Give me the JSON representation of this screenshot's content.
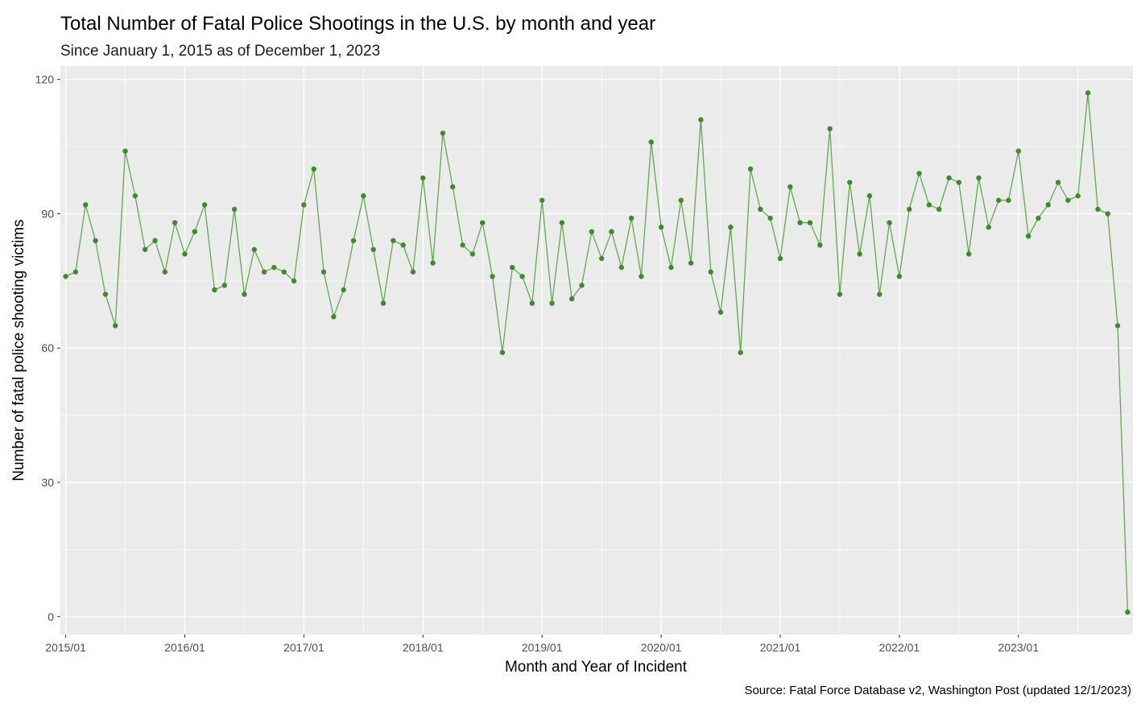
{
  "chart_data": {
    "type": "line",
    "title": "Total Number of Fatal Police Shootings in the U.S. by month and year",
    "subtitle": "Since January 1, 2015 as of December 1, 2023",
    "xlabel": "Month and Year of Incident",
    "ylabel": "Number of fatal police shooting victims",
    "caption": "Source: Fatal Force Database v2, Washington Post (updated 12/1/2023)",
    "x_start": "2015-01",
    "x_end": "2023-12",
    "xlim": [
      "2015-01",
      "2023-12"
    ],
    "ylim": [
      -4,
      123
    ],
    "x_ticks": [
      {
        "x": "2015-01",
        "label": "2015/01"
      },
      {
        "x": "2016-01",
        "label": "2016/01"
      },
      {
        "x": "2017-01",
        "label": "2017/01"
      },
      {
        "x": "2018-01",
        "label": "2018/01"
      },
      {
        "x": "2019-01",
        "label": "2019/01"
      },
      {
        "x": "2020-01",
        "label": "2020/01"
      },
      {
        "x": "2021-01",
        "label": "2021/01"
      },
      {
        "x": "2022-01",
        "label": "2022/01"
      },
      {
        "x": "2023-01",
        "label": "2023/01"
      }
    ],
    "y_ticks": [
      {
        "value": 0,
        "label": "0"
      },
      {
        "value": 30,
        "label": "30"
      },
      {
        "value": 60,
        "label": "60"
      },
      {
        "value": 90,
        "label": "90"
      },
      {
        "value": 120,
        "label": "120"
      }
    ],
    "grid": true,
    "background_color": "#ebebeb",
    "grid_color": "#ffffff",
    "series": [
      {
        "color": "#3f8a2e",
        "line_color": "#62a852",
        "x": [
          "2015-01",
          "2015-02",
          "2015-03",
          "2015-04",
          "2015-05",
          "2015-06",
          "2015-07",
          "2015-08",
          "2015-09",
          "2015-10",
          "2015-11",
          "2015-12",
          "2016-01",
          "2016-02",
          "2016-03",
          "2016-04",
          "2016-05",
          "2016-06",
          "2016-07",
          "2016-08",
          "2016-09",
          "2016-10",
          "2016-11",
          "2016-12",
          "2017-01",
          "2017-02",
          "2017-03",
          "2017-04",
          "2017-05",
          "2017-06",
          "2017-07",
          "2017-08",
          "2017-09",
          "2017-10",
          "2017-11",
          "2017-12",
          "2018-01",
          "2018-02",
          "2018-03",
          "2018-04",
          "2018-05",
          "2018-06",
          "2018-07",
          "2018-08",
          "2018-09",
          "2018-10",
          "2018-11",
          "2018-12",
          "2019-01",
          "2019-02",
          "2019-03",
          "2019-04",
          "2019-05",
          "2019-06",
          "2019-07",
          "2019-08",
          "2019-09",
          "2019-10",
          "2019-11",
          "2019-12",
          "2020-01",
          "2020-02",
          "2020-03",
          "2020-04",
          "2020-05",
          "2020-06",
          "2020-07",
          "2020-08",
          "2020-09",
          "2020-10",
          "2020-11",
          "2020-12",
          "2021-01",
          "2021-02",
          "2021-03",
          "2021-04",
          "2021-05",
          "2021-06",
          "2021-07",
          "2021-08",
          "2021-09",
          "2021-10",
          "2021-11",
          "2021-12",
          "2022-01",
          "2022-02",
          "2022-03",
          "2022-04",
          "2022-05",
          "2022-06",
          "2022-07",
          "2022-08",
          "2022-09",
          "2022-10",
          "2022-11",
          "2022-12",
          "2023-01",
          "2023-02",
          "2023-03",
          "2023-04",
          "2023-05",
          "2023-06",
          "2023-07",
          "2023-08",
          "2023-09",
          "2023-10",
          "2023-11",
          "2023-12"
        ],
        "values": [
          76,
          77,
          92,
          84,
          72,
          65,
          104,
          94,
          82,
          84,
          77,
          88,
          81,
          86,
          92,
          73,
          74,
          91,
          72,
          82,
          77,
          78,
          77,
          75,
          92,
          100,
          77,
          67,
          73,
          84,
          94,
          82,
          70,
          84,
          83,
          77,
          98,
          79,
          108,
          96,
          83,
          81,
          88,
          76,
          59,
          78,
          76,
          70,
          93,
          70,
          88,
          71,
          74,
          86,
          80,
          86,
          78,
          89,
          76,
          106,
          87,
          78,
          93,
          79,
          111,
          77,
          68,
          87,
          59,
          100,
          91,
          89,
          80,
          96,
          88,
          88,
          83,
          109,
          72,
          97,
          81,
          94,
          72,
          88,
          76,
          91,
          99,
          92,
          91,
          98,
          97,
          81,
          98,
          87,
          93,
          93,
          104,
          85,
          89,
          92,
          97,
          93,
          94,
          117,
          91,
          90,
          65,
          1
        ]
      }
    ]
  }
}
